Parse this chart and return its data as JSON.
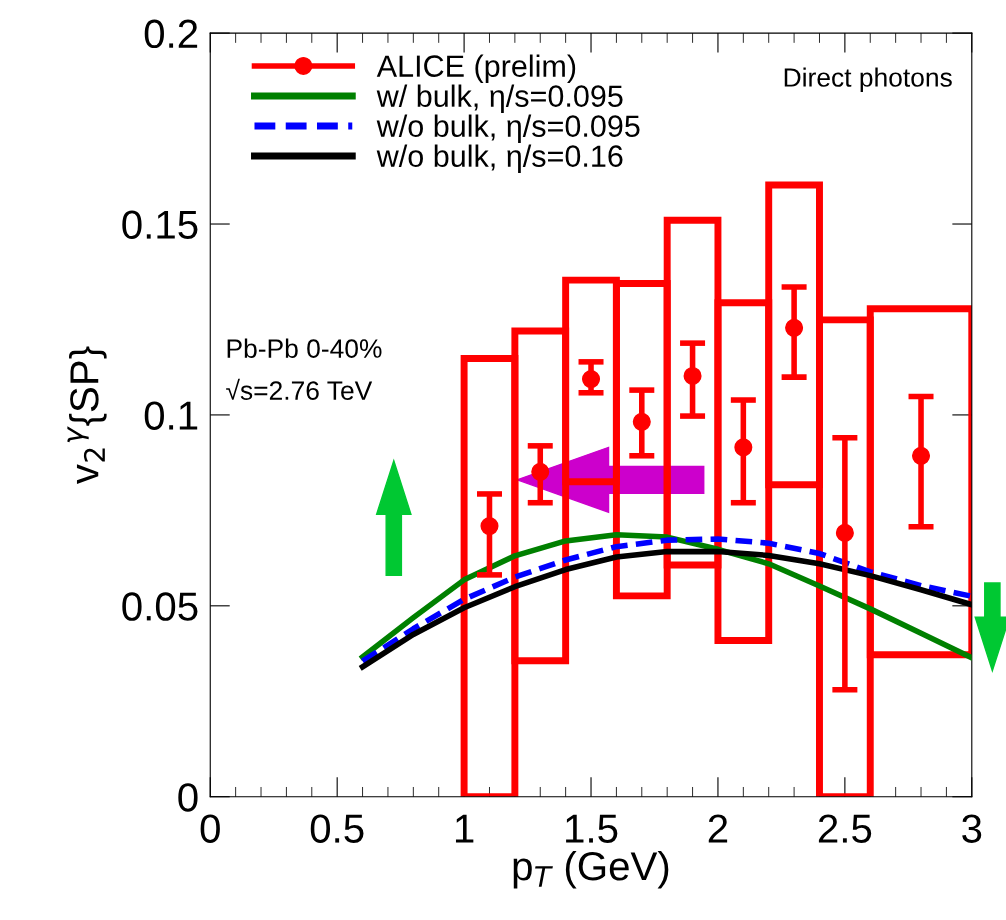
{
  "chart_data": {
    "type": "scatter",
    "xlabel": "p$_{T}$ (GeV)",
    "ylabel": "v$_{2}$$^{γ}${SP}",
    "xlim": [
      0,
      3
    ],
    "ylim": [
      0,
      0.2
    ],
    "xticks": [
      0,
      0.5,
      1,
      1.5,
      2,
      2.5,
      3
    ],
    "yticks": [
      0,
      0.05,
      0.1,
      0.15,
      0.2
    ],
    "grid": false,
    "legend": "top left",
    "annotations": [
      "Direct photons",
      "Pb-Pb 0-40%",
      "√s=2.76 TeV"
    ],
    "series": [
      {
        "type": "histogram",
        "color": "#ff0000",
        "bins": [
          1.0,
          1.2,
          1.4,
          1.6,
          1.8,
          2.0,
          2.2,
          2.4,
          2.6,
          3.0
        ],
        "base": [
          0,
          0.0356,
          0.0825,
          0.0526,
          0.0607,
          0.0409,
          0.0817,
          0,
          0.0372
        ],
        "values": [
          0.1148,
          0.0864,
          0.0528,
          0.0818,
          0.0903,
          0.0885,
          0.0785,
          0.1249,
          0.0906
        ]
      },
      {
        "name": "ALICE (prelim)",
        "color": "#ff0000",
        "marker": "circle",
        "x": [
          1.1,
          1.3,
          1.5,
          1.7,
          1.9,
          2.1,
          2.3,
          2.5,
          2.8
        ],
        "values": [
          0.0709,
          0.0851,
          0.1094,
          0.0982,
          0.1102,
          0.0915,
          0.1228,
          0.0691,
          0.0893
        ],
        "errors": [
          [
            0.0581,
            0.0793
          ],
          [
            0.077,
            0.0919
          ],
          [
            0.1058,
            0.1139
          ],
          [
            0.0893,
            0.1065
          ],
          [
            0.0997,
            0.1188
          ],
          [
            0.077,
            0.1039
          ],
          [
            0.1099,
            0.1335
          ],
          [
            0.028,
            0.094
          ],
          [
            0.0707,
            0.1048
          ]
        ]
      },
      {
        "type": "line",
        "name": "w/ bulk, η/s=0.095",
        "color": "#008000",
        "line_style": "solid",
        "x": [
          0.6,
          0.8,
          1.0,
          1.2,
          1.4,
          1.6,
          1.8,
          2.0,
          2.2,
          2.4,
          2.6,
          2.8,
          3.0
        ],
        "values": [
          0.0366,
          0.0469,
          0.0568,
          0.0631,
          0.067,
          0.0686,
          0.068,
          0.0648,
          0.061,
          0.0552,
          0.0492,
          0.0428,
          0.0364
        ]
      },
      {
        "type": "line",
        "name": "w/o bulk, η/s=0.095",
        "color": "#0000ff",
        "line_style": "dashed",
        "x": [
          0.6,
          0.8,
          1.0,
          1.2,
          1.4,
          1.6,
          1.8,
          2.0,
          2.2,
          2.4,
          2.6,
          2.8,
          3.0
        ],
        "values": [
          0.0355,
          0.044,
          0.0517,
          0.0575,
          0.062,
          0.0655,
          0.0672,
          0.0675,
          0.0664,
          0.0637,
          0.0589,
          0.0553,
          0.0525
        ]
      },
      {
        "type": "line",
        "name": "w/o bulk, η/s=0.16",
        "color": "#000000",
        "line_style": "solid",
        "x": [
          0.6,
          0.8,
          1.0,
          1.2,
          1.4,
          1.6,
          1.8,
          2.0,
          2.2,
          2.4,
          2.6,
          2.8,
          3.0
        ],
        "values": [
          0.034,
          0.0425,
          0.0495,
          0.055,
          0.0595,
          0.0628,
          0.0642,
          0.0642,
          0.0632,
          0.061,
          0.0579,
          0.0542,
          0.0503
        ]
      }
    ]
  }
}
